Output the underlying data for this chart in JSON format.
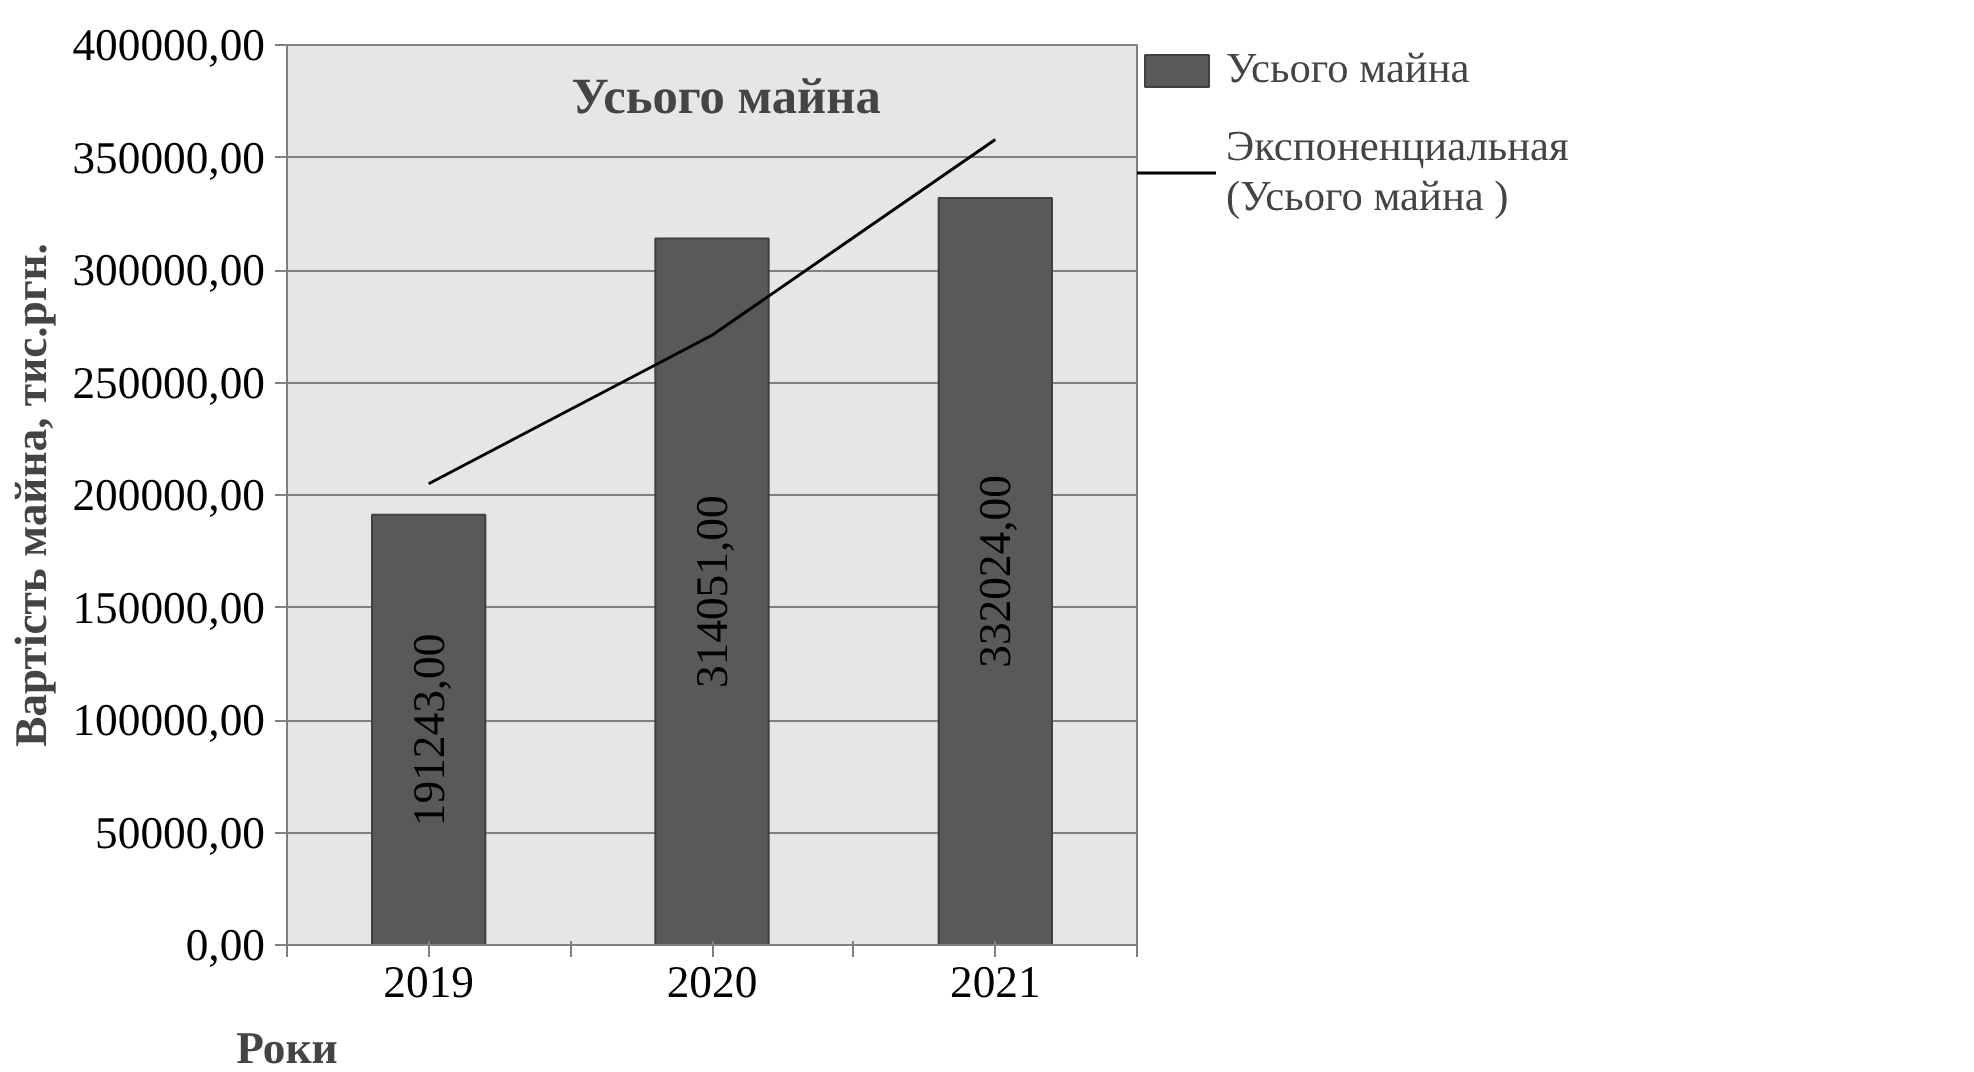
{
  "chart_data": {
    "type": "bar",
    "title": "Усього майна",
    "xlabel": "Роки",
    "ylabel": "Вартість майна, тис.ргн.",
    "categories": [
      "2019",
      "2020",
      "2021"
    ],
    "series": [
      {
        "name": "Усього майна",
        "color": "#595959",
        "values": [
          191243,
          314051,
          332024
        ],
        "value_labels": [
          "191243,00",
          "314051,00",
          "332024,00"
        ]
      },
      {
        "type": "line",
        "name": "Экспоненциальная\n(Усього майна )",
        "color": "#000000",
        "values": [
          205000,
          271000,
          358000
        ]
      }
    ],
    "ylim": [
      0,
      400000
    ],
    "yticks": [
      {
        "value": 0,
        "label": "0,00"
      },
      {
        "value": 50000,
        "label": "50000,00"
      },
      {
        "value": 100000,
        "label": "100000,00"
      },
      {
        "value": 150000,
        "label": "150000,00"
      },
      {
        "value": 200000,
        "label": "200000,00"
      },
      {
        "value": 250000,
        "label": "250000,00"
      },
      {
        "value": 300000,
        "label": "300000,00"
      },
      {
        "value": 350000,
        "label": "350000,00"
      },
      {
        "value": 400000,
        "label": "400000,00"
      }
    ],
    "grid": "y",
    "legend": "right"
  }
}
